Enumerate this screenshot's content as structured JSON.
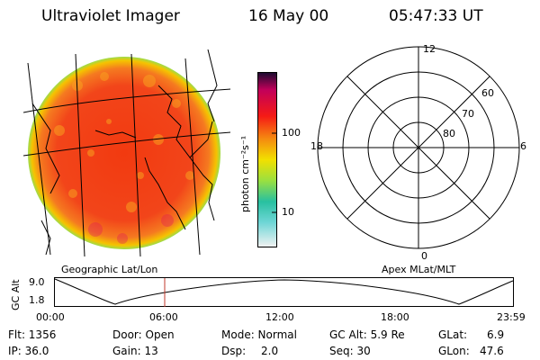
{
  "header": {
    "title": "Ultraviolet Imager",
    "date": "16 May 00",
    "time": "05:47:33 UT"
  },
  "colorbar": {
    "unit_label": "photon cm⁻²s⁻¹",
    "ticks": [
      "100",
      "10"
    ]
  },
  "polar_plot": {
    "mlt_labels": [
      "12",
      "18",
      "6",
      "0"
    ],
    "lat_labels": [
      "60",
      "70",
      "80"
    ]
  },
  "labels": {
    "left": "Geographic Lat/Lon",
    "right": "Apex MLat/MLT"
  },
  "alt_plot": {
    "ylabel": "GC Alt",
    "yticks": [
      "9.0",
      "1.8"
    ],
    "xticks": [
      "00:00",
      "06:00",
      "12:00",
      "18:00",
      "23:59"
    ]
  },
  "info": {
    "flt": "Flt: 1356",
    "ip": "IP: 36.0",
    "door": "Door: Open",
    "gain": "Gain: 13",
    "mode": "Mode: Normal",
    "dsp": "Dsp:",
    "dsp_val": "2.0",
    "gc_alt": "GC Alt: 5.9 Re",
    "seq": "Seq: 30",
    "glat": "GLat:",
    "glat_val": "6.9",
    "glon": "GLon:",
    "glon_val": "47.6"
  },
  "colors": {
    "disk_fill": "#f23a10",
    "disk_rim": "#f5d200",
    "marker": "#c0392b"
  }
}
